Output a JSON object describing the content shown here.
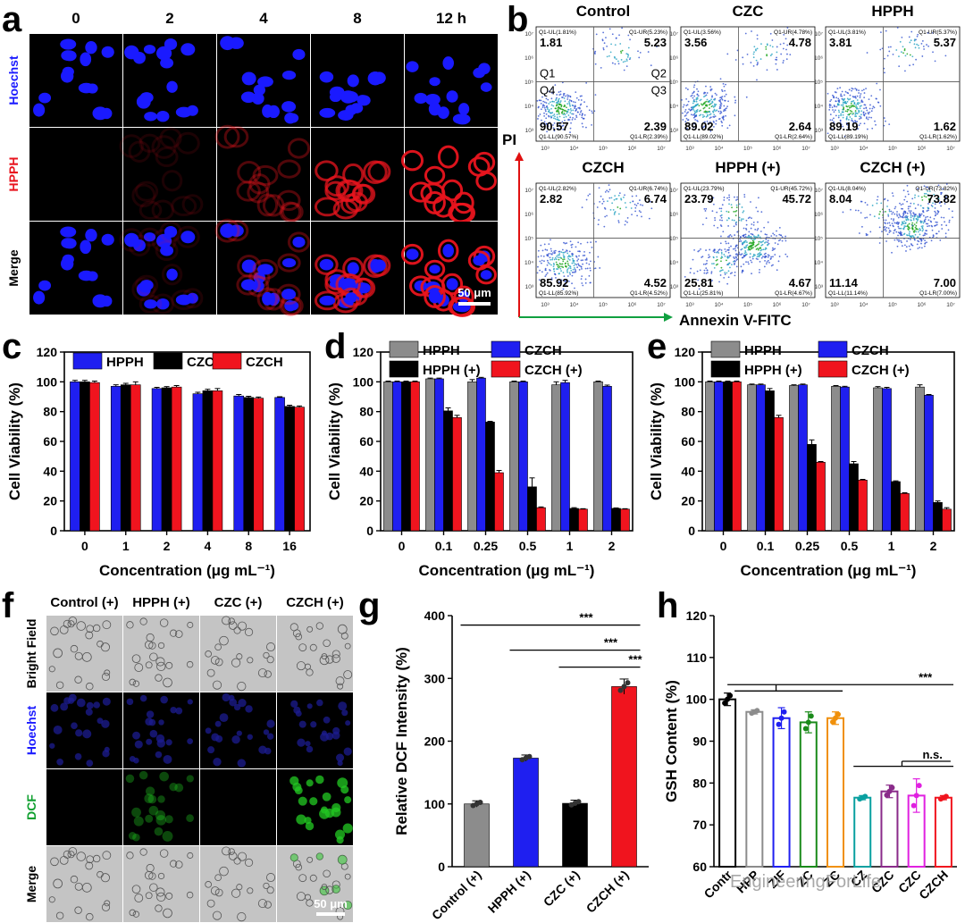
{
  "panels": {
    "a": {
      "label": "a",
      "columns": [
        "0",
        "2",
        "4",
        "8",
        "12 h"
      ],
      "rows": [
        "Hoechst",
        "HPPH",
        "Merge"
      ],
      "scale_bar": "50 μm",
      "colors": {
        "hoechst": "#1a1aff",
        "hpph": "#e8141e",
        "background": "#000000"
      },
      "hpph_intensity": [
        0.02,
        0.12,
        0.35,
        0.75,
        0.95
      ]
    },
    "b": {
      "label": "b",
      "y_axis": "PI",
      "x_axis": "Annexin V-FITC",
      "quadrant_names": [
        "Q1",
        "Q2",
        "Q4",
        "Q3"
      ],
      "plots": [
        {
          "title": "Control",
          "ul": "1.81",
          "ur": "5.23",
          "ll": "90.57",
          "lr": "2.39",
          "ul_small": "Q1-UL(1.81%)",
          "ur_small": "Q1-UR(5.23%)",
          "ll_small": "Q1-LL(90.57%)",
          "lr_small": "Q1-LR(2.39%)"
        },
        {
          "title": "CZC",
          "ul": "3.56",
          "ur": "4.78",
          "ll": "89.02",
          "lr": "2.64",
          "ul_small": "Q1-UL(3.56%)",
          "ur_small": "Q1-UR(4.78%)",
          "ll_small": "Q1-LL(89.02%)",
          "lr_small": "Q1-LR(2.64%)"
        },
        {
          "title": "HPPH",
          "ul": "3.81",
          "ur": "5.37",
          "ll": "89.19",
          "lr": "1.62",
          "ul_small": "Q1-UL(3.81%)",
          "ur_small": "Q1-UR(5.37%)",
          "ll_small": "Q1-LL(89.19%)",
          "lr_small": "Q1-LR(1.62%)"
        },
        {
          "title": "CZCH",
          "ul": "2.82",
          "ur": "6.74",
          "ll": "85.92",
          "lr": "4.52",
          "ul_small": "Q1-UL(2.82%)",
          "ur_small": "Q1-UR(6.74%)",
          "ll_small": "Q1-LL(85.92%)",
          "lr_small": "Q1-LR(4.52%)"
        },
        {
          "title": "HPPH (+)",
          "ul": "23.79",
          "ur": "45.72",
          "ll": "25.81",
          "lr": "4.67",
          "ul_small": "Q1-UL(23.79%)",
          "ur_small": "Q1-UR(45.72%)",
          "ll_small": "Q1-LL(25.81%)",
          "lr_small": "Q1-LR(4.67%)"
        },
        {
          "title": "CZCH (+)",
          "ul": "8.04",
          "ur": "73.82",
          "ll": "11.14",
          "lr": "7.00",
          "ul_small": "Q1-UL(8.04%)",
          "ur_small": "Q1-UR(73.82%)",
          "ll_small": "Q1-LL(11.14%)",
          "lr_small": "Q1-LR(7.00%)"
        }
      ],
      "tick_labels": [
        "10³",
        "10⁴",
        "10⁵",
        "10⁶",
        "10⁷"
      ]
    },
    "c": {
      "label": "c"
    },
    "d": {
      "label": "d"
    },
    "e": {
      "label": "e"
    },
    "f": {
      "label": "f",
      "columns": [
        "Control (+)",
        "HPPH (+)",
        "CZC (+)",
        "CZCH (+)"
      ],
      "rows": [
        "Bright Field",
        "Hoechst",
        "DCF",
        "Merge"
      ],
      "scale_bar": "50 μm",
      "dcf_intensity": [
        0.02,
        0.45,
        0.02,
        0.95
      ]
    },
    "g": {
      "label": "g"
    },
    "h": {
      "label": "h",
      "watermark": "EngineeringForLife"
    }
  },
  "chart_data": [
    {
      "id": "c",
      "type": "bar",
      "categories": [
        "0",
        "1",
        "2",
        "4",
        "8",
        "16"
      ],
      "series": [
        {
          "name": "HPPH",
          "color": "#1f1ff0",
          "values": [
            100,
            97,
            95.5,
            92,
            90.5,
            89.5
          ],
          "errors": [
            1,
            1,
            0.8,
            1,
            1,
            0.5
          ]
        },
        {
          "name": "CZC",
          "color": "#000000",
          "values": [
            100,
            98,
            96,
            94,
            89.5,
            83.5
          ],
          "errors": [
            1,
            1,
            0.8,
            1,
            0.8,
            0.8
          ]
        },
        {
          "name": "CZCH",
          "color": "#f0141e",
          "values": [
            99.5,
            98,
            96.5,
            94,
            89,
            83
          ],
          "errors": [
            1,
            2,
            1,
            1.5,
            0.8,
            0.8
          ]
        }
      ],
      "xlabel": "Concentration (μg mL⁻¹)",
      "ylabel": "Cell Viability (%)",
      "ylim": [
        0,
        120
      ],
      "yticks": [
        0,
        20,
        40,
        60,
        80,
        100,
        120
      ],
      "legend": "top"
    },
    {
      "id": "d",
      "type": "bar",
      "categories": [
        "0",
        "0.1",
        "0.25",
        "0.5",
        "1",
        "2"
      ],
      "series": [
        {
          "name": "HPPH",
          "color": "#8c8c8c",
          "values": [
            100,
            102,
            100,
            100,
            98,
            100
          ],
          "errors": [
            0.5,
            0.5,
            1.5,
            0.5,
            2,
            0.5
          ]
        },
        {
          "name": "CZCH",
          "color": "#1f1ff0",
          "values": [
            100,
            102,
            102.5,
            100,
            99.5,
            97
          ],
          "errors": [
            0.5,
            0.5,
            0.5,
            0.5,
            1.5,
            0.8
          ]
        },
        {
          "name": "HPPH (+)",
          "color": "#000000",
          "values": [
            100,
            80.5,
            73,
            29.5,
            15,
            15
          ],
          "errors": [
            0.5,
            2,
            0.5,
            6,
            0.5,
            0.3
          ]
        },
        {
          "name": "CZCH (+)",
          "color": "#f0141e",
          "values": [
            100,
            76,
            39,
            15.5,
            14.5,
            14.5
          ],
          "errors": [
            0.5,
            1.5,
            1.5,
            0.5,
            0.3,
            0.3
          ]
        }
      ],
      "xlabel": "Concentration (μg mL⁻¹)",
      "ylabel": "Cell Viability (%)",
      "ylim": [
        0,
        120
      ],
      "yticks": [
        0,
        20,
        40,
        60,
        80,
        100,
        120
      ],
      "legend": "top"
    },
    {
      "id": "e",
      "type": "bar",
      "categories": [
        "0",
        "0.1",
        "0.25",
        "0.5",
        "1",
        "2"
      ],
      "series": [
        {
          "name": "HPPH",
          "color": "#8c8c8c",
          "values": [
            100,
            98,
            97.5,
            97,
            96,
            96.5
          ],
          "errors": [
            0.5,
            0.5,
            0.5,
            0.5,
            0.8,
            1.5
          ]
        },
        {
          "name": "CZCH",
          "color": "#1f1ff0",
          "values": [
            100,
            98,
            98,
            96.5,
            95.5,
            91
          ],
          "errors": [
            0.5,
            0.5,
            0.5,
            0.5,
            0.8,
            0.5
          ]
        },
        {
          "name": "HPPH (+)",
          "color": "#000000",
          "values": [
            100,
            94,
            58,
            45,
            33,
            19
          ],
          "errors": [
            0.5,
            1.5,
            3,
            1.5,
            0.5,
            1
          ]
        },
        {
          "name": "CZCH (+)",
          "color": "#f0141e",
          "values": [
            100,
            76,
            46,
            34,
            25,
            14.5
          ],
          "errors": [
            0.5,
            1.5,
            0.5,
            0.5,
            0.5,
            1
          ]
        }
      ],
      "xlabel": "Concentration (μg mL⁻¹)",
      "ylabel": "Cell Viability (%)",
      "ylim": [
        0,
        120
      ],
      "yticks": [
        0,
        20,
        40,
        60,
        80,
        100,
        120
      ],
      "legend": "top"
    },
    {
      "id": "g",
      "type": "bar",
      "categories": [
        "Control (+)",
        "HPPH (+)",
        "CZC (+)",
        "CZCH (+)"
      ],
      "series": [
        {
          "values": [
            100,
            173,
            101,
            287
          ],
          "errors": [
            5,
            5,
            5,
            12
          ],
          "colors": [
            "#8c8c8c",
            "#1f1ff0",
            "#000000",
            "#f0141e"
          ]
        }
      ],
      "xlabel": "",
      "ylabel": "Relative DCF Intensity (%)",
      "ylim": [
        0,
        400
      ],
      "yticks": [
        0,
        100,
        200,
        300,
        400
      ],
      "significance": [
        {
          "from": 0,
          "to": 3,
          "label": "***"
        },
        {
          "from": 1,
          "to": 3,
          "label": "***"
        },
        {
          "from": 2,
          "to": 3,
          "label": "***"
        }
      ]
    },
    {
      "id": "h",
      "type": "bar",
      "categories": [
        "Control",
        "HPPH",
        "ZIF",
        "ZC",
        "ZCH",
        "CZ",
        "CZC",
        "CZC",
        "CZCH"
      ],
      "tick_labels": [
        "Contr",
        "HPP",
        "ZIF",
        "ZC",
        "ZC",
        "CZ",
        "CZC",
        "CZC",
        "CZCH"
      ],
      "series": [
        {
          "values": [
            100,
            97,
            95.5,
            94.5,
            95.5,
            76.5,
            78,
            77,
            76.5
          ],
          "errors": [
            1.5,
            0.5,
            2.5,
            2.5,
            1.5,
            0.5,
            1.5,
            4,
            0.5
          ],
          "colors": [
            "#000000",
            "#8c8c8c",
            "#1f1ff0",
            "#1a8a1a",
            "#f0900a",
            "#0aa0a0",
            "#8a2b8a",
            "#e020e0",
            "#f0141e"
          ]
        }
      ],
      "xlabel": "",
      "ylabel": "GSH Content (%)",
      "ylim": [
        60,
        120
      ],
      "yticks": [
        60,
        70,
        80,
        90,
        100,
        110,
        120
      ],
      "significance": [
        {
          "label": "***"
        },
        {
          "label": "n.s."
        }
      ]
    }
  ]
}
